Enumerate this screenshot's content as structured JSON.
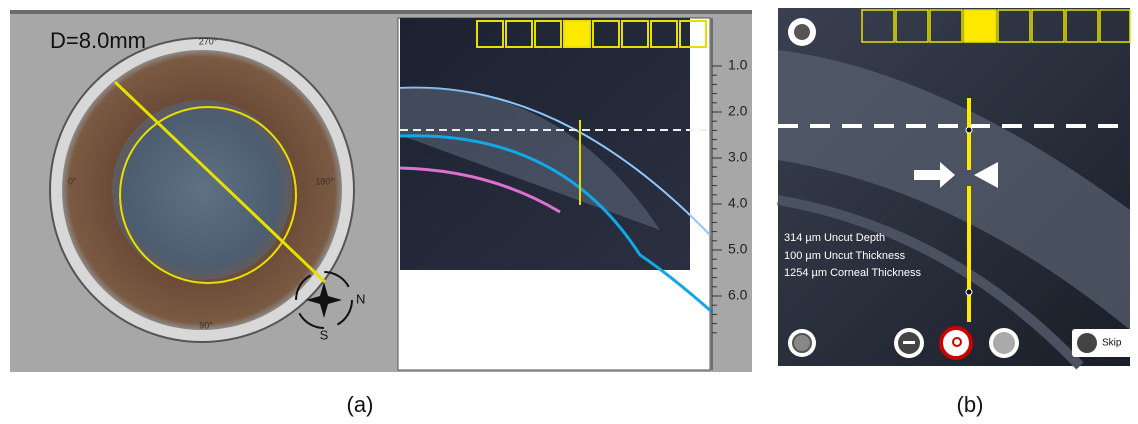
{
  "panel_a": {
    "diameter_label": "D=8.0mm",
    "angles": [
      "270°",
      "0°",
      "180°",
      "90°"
    ],
    "compass": [
      "N",
      "S"
    ],
    "depth_scale": [
      "1.0",
      "2.0",
      "3.0",
      "4.0",
      "5.0",
      "6.0"
    ],
    "caption": "(a)"
  },
  "panel_b": {
    "measurements": [
      "314 µm Uncut Depth",
      "100 µm Uncut Thickness",
      "1254 µm Corneal Thickness"
    ],
    "skip_button": "Skip",
    "caption": "(b)"
  }
}
